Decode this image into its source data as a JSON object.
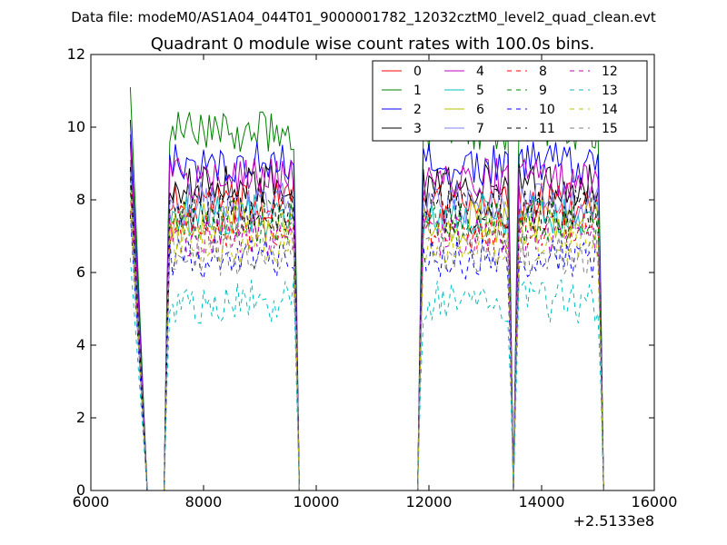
{
  "chart_data": {
    "type": "line",
    "suptitle": "Data file: modeM0/AS1A04_044T01_9000001782_12032cztM0_level2_quad_clean.evt",
    "title": "Quadrant 0 module wise count rates with 100.0s bins.",
    "xlabel": "",
    "ylabel": "",
    "x_offset_label": "+2.5133e8",
    "xlim": [
      6000,
      16000
    ],
    "ylim": [
      0,
      12
    ],
    "x_ticks": [
      6000,
      8000,
      10000,
      12000,
      14000,
      16000
    ],
    "y_ticks": [
      0,
      2,
      4,
      6,
      8,
      10,
      12
    ],
    "grid": false,
    "legend_position": "top-right",
    "legend_columns": 4,
    "segments": [
      {
        "start": 6700,
        "end": 7000
      },
      {
        "start": 7300,
        "end": 9700
      },
      {
        "start": 11800,
        "end": 13500
      },
      {
        "start": 13500,
        "end": 15100
      }
    ],
    "series": [
      {
        "name": "0",
        "color": "#ff0000",
        "style": "solid",
        "level": 7.9
      },
      {
        "name": "1",
        "color": "#008000",
        "style": "solid",
        "level": 9.9
      },
      {
        "name": "2",
        "color": "#0000ff",
        "style": "solid",
        "level": 9.0
      },
      {
        "name": "3",
        "color": "#000000",
        "style": "solid",
        "level": 8.4
      },
      {
        "name": "4",
        "color": "#bf00bf",
        "style": "solid",
        "level": 8.6
      },
      {
        "name": "5",
        "color": "#00bfbf",
        "style": "solid",
        "level": 7.6
      },
      {
        "name": "6",
        "color": "#bfbf00",
        "style": "solid",
        "level": 7.4
      },
      {
        "name": "7",
        "color": "#8080ff",
        "style": "solid",
        "level": 7.9
      },
      {
        "name": "8",
        "color": "#ff0000",
        "style": "dashed",
        "level": 7.2
      },
      {
        "name": "9",
        "color": "#008000",
        "style": "dashed",
        "level": 7.4
      },
      {
        "name": "10",
        "color": "#0000ff",
        "style": "dashed",
        "level": 6.4
      },
      {
        "name": "11",
        "color": "#000000",
        "style": "dashed",
        "level": 7.7
      },
      {
        "name": "12",
        "color": "#bf00bf",
        "style": "dashed",
        "level": 7.0
      },
      {
        "name": "13",
        "color": "#00bfbf",
        "style": "dashed",
        "level": 5.2
      },
      {
        "name": "14",
        "color": "#bfbf00",
        "style": "dashed",
        "level": 6.8
      },
      {
        "name": "15",
        "color": "#808080",
        "style": "dashed",
        "level": 6.5
      }
    ]
  }
}
